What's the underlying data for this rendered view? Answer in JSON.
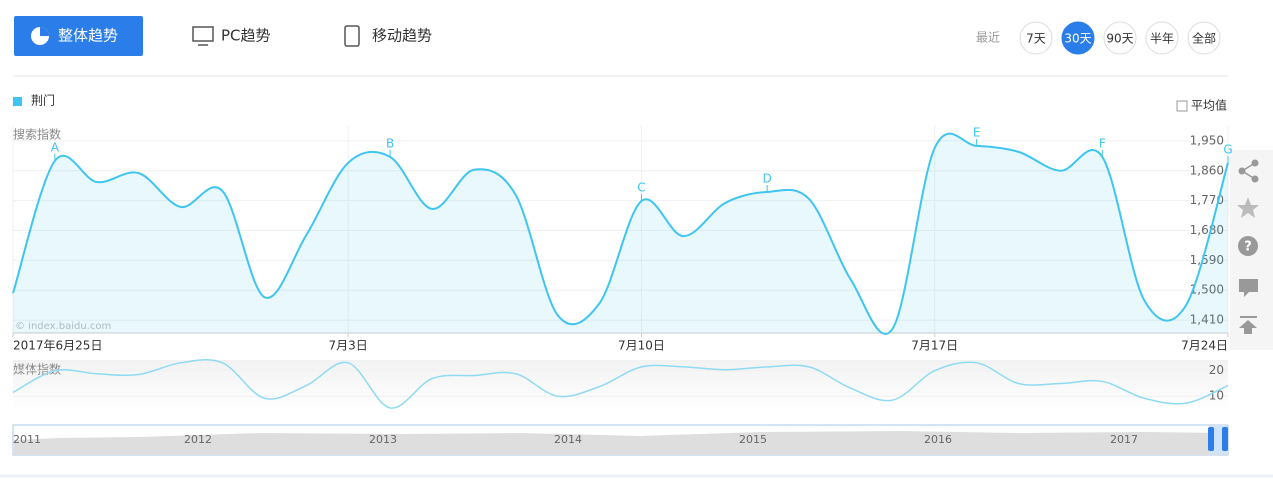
{
  "tabs": [
    "整体趋势",
    "PC趋势",
    "移动趋势"
  ],
  "range": {
    "label": "最近",
    "options": [
      "7天",
      "30天",
      "90天",
      "半年",
      "全部"
    ],
    "selected": "30天"
  },
  "average_toggle": "平均值",
  "timeline_years": [
    "2011",
    "2012",
    "2013",
    "2014",
    "2015",
    "2016",
    "2017"
  ],
  "chart_data": [
    {
      "type": "line",
      "ylabel": "搜索指数",
      "watermark": "© index.baidu.com",
      "categories": [
        "2017年6月25日",
        null,
        null,
        null,
        null,
        null,
        null,
        null,
        "7月3日",
        null,
        null,
        null,
        null,
        null,
        null,
        "7月10日",
        null,
        null,
        null,
        null,
        null,
        null,
        "7月17日",
        null,
        null,
        null,
        null,
        null,
        null,
        "7月24日"
      ],
      "series": [
        {
          "name": "荆门",
          "color": "#3ec5f0",
          "values": [
            1491,
            1890,
            1826,
            1853,
            1751,
            1799,
            1479,
            1666,
            1884,
            1902,
            1745,
            1863,
            1787,
            1425,
            1461,
            1769,
            1663,
            1763,
            1796,
            1775,
            1531,
            1385,
            1929,
            1935,
            1917,
            1860,
            1902,
            1470,
            1455,
            1884
          ],
          "point_labels": [
            null,
            "A",
            null,
            null,
            null,
            null,
            null,
            null,
            null,
            "B",
            null,
            null,
            null,
            null,
            null,
            "C",
            null,
            null,
            "D",
            null,
            null,
            null,
            null,
            "E",
            null,
            null,
            "F",
            null,
            null,
            "G"
          ]
        }
      ],
      "ylim": [
        1371,
        1995
      ],
      "yticks": [
        {
          "value": 1410,
          "label": "1,410"
        },
        {
          "value": 1500,
          "label": "1,500"
        },
        {
          "value": 1590,
          "label": "1,590"
        },
        {
          "value": 1680,
          "label": "1,680"
        },
        {
          "value": 1770,
          "label": "1,770"
        },
        {
          "value": 1860,
          "label": "1,860"
        },
        {
          "value": 1950,
          "label": "1,950"
        }
      ],
      "grid": true
    },
    {
      "type": "line",
      "ylabel": "媒体指数",
      "color": "#8fdaf3",
      "values": [
        11.5,
        20,
        18.8,
        18.5,
        23.1,
        23.1,
        9.2,
        14.2,
        23.1,
        5.4,
        16.9,
        18.1,
        18.8,
        10,
        13.8,
        21.5,
        21.5,
        20.4,
        21.5,
        21.5,
        13.1,
        8.5,
        20,
        23.1,
        15,
        15,
        15.8,
        9.2,
        7.3,
        14.2
      ],
      "ylim": [
        4.6,
        24.2
      ],
      "yticks": [
        20,
        10
      ],
      "grid": true
    }
  ]
}
